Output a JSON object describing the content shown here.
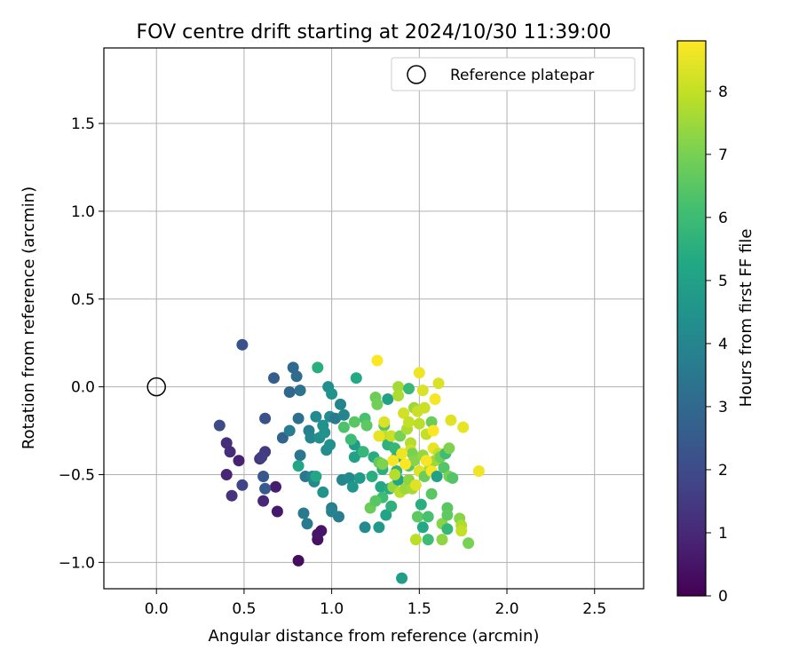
{
  "chart_data": {
    "type": "scatter",
    "title": "FOV centre drift starting at 2024/10/30 11:39:00",
    "xlabel": "Angular distance from reference (arcmin)",
    "ylabel": "Rotation from reference (arcmin)",
    "xlim": [
      -0.3,
      2.78
    ],
    "ylim": [
      -1.15,
      1.93
    ],
    "xticks": [
      0.0,
      0.5,
      1.0,
      1.5,
      2.0,
      2.5
    ],
    "xtick_labels": [
      "0.0",
      "0.5",
      "1.0",
      "1.5",
      "2.0",
      "2.5"
    ],
    "yticks": [
      -1.0,
      -0.5,
      0.0,
      0.5,
      1.0,
      1.5
    ],
    "ytick_labels": [
      "−1.0",
      "−0.5",
      "0.0",
      "0.5",
      "1.0",
      "1.5"
    ],
    "grid": true,
    "legend": {
      "placement": "top-right",
      "entries": [
        "Reference platepar"
      ]
    },
    "reference_point": {
      "x": 0.0,
      "y": 0.0,
      "marker": "open-circle"
    },
    "colorbar": {
      "label": "Hours from first FF file",
      "min": 0,
      "max": 8.8,
      "ticks": [
        0,
        1,
        2,
        3,
        4,
        5,
        6,
        7,
        8
      ],
      "colormap": "viridis"
    },
    "points": [
      {
        "x": 0.81,
        "y": -0.99,
        "h": 0.3
      },
      {
        "x": 0.92,
        "y": -0.87,
        "h": 0.4
      },
      {
        "x": 0.94,
        "y": -0.82,
        "h": 0.5
      },
      {
        "x": 0.92,
        "y": -0.84,
        "h": 0.5
      },
      {
        "x": 0.69,
        "y": -0.71,
        "h": 0.6
      },
      {
        "x": 0.68,
        "y": -0.57,
        "h": 0.7
      },
      {
        "x": 0.61,
        "y": -0.65,
        "h": 1.0
      },
      {
        "x": 0.47,
        "y": -0.42,
        "h": 0.8
      },
      {
        "x": 0.4,
        "y": -0.32,
        "h": 1.2
      },
      {
        "x": 0.42,
        "y": -0.37,
        "h": 1.1
      },
      {
        "x": 0.4,
        "y": -0.5,
        "h": 0.9
      },
      {
        "x": 0.43,
        "y": -0.62,
        "h": 1.3
      },
      {
        "x": 0.59,
        "y": -0.41,
        "h": 1.3
      },
      {
        "x": 0.62,
        "y": -0.37,
        "h": 1.5
      },
      {
        "x": 0.6,
        "y": -0.4,
        "h": 1.6
      },
      {
        "x": 0.49,
        "y": -0.56,
        "h": 1.8
      },
      {
        "x": 0.36,
        "y": -0.22,
        "h": 2.0
      },
      {
        "x": 0.49,
        "y": 0.24,
        "h": 2.2
      },
      {
        "x": 0.62,
        "y": -0.18,
        "h": 2.2
      },
      {
        "x": 0.61,
        "y": -0.51,
        "h": 2.4
      },
      {
        "x": 0.62,
        "y": -0.58,
        "h": 2.5
      },
      {
        "x": 0.67,
        "y": 0.05,
        "h": 2.6
      },
      {
        "x": 0.72,
        "y": -0.29,
        "h": 2.8
      },
      {
        "x": 0.76,
        "y": -0.03,
        "h": 2.9
      },
      {
        "x": 0.78,
        "y": 0.11,
        "h": 3.0
      },
      {
        "x": 0.8,
        "y": 0.06,
        "h": 3.1
      },
      {
        "x": 0.82,
        "y": -0.02,
        "h": 3.3
      },
      {
        "x": 0.81,
        "y": -0.18,
        "h": 3.2
      },
      {
        "x": 0.82,
        "y": -0.39,
        "h": 3.4
      },
      {
        "x": 0.85,
        "y": -0.51,
        "h": 3.5
      },
      {
        "x": 0.84,
        "y": -0.72,
        "h": 3.6
      },
      {
        "x": 0.86,
        "y": -0.78,
        "h": 3.6
      },
      {
        "x": 0.76,
        "y": -0.25,
        "h": 3.7
      },
      {
        "x": 0.87,
        "y": -0.25,
        "h": 3.8
      },
      {
        "x": 0.89,
        "y": -0.51,
        "h": 3.9
      },
      {
        "x": 0.88,
        "y": -0.29,
        "h": 4.0
      },
      {
        "x": 0.9,
        "y": -0.54,
        "h": 4.1
      },
      {
        "x": 0.91,
        "y": -0.17,
        "h": 4.2
      },
      {
        "x": 0.93,
        "y": -0.29,
        "h": 4.3
      },
      {
        "x": 0.95,
        "y": -0.22,
        "h": 4.4
      },
      {
        "x": 0.96,
        "y": -0.26,
        "h": 4.5
      },
      {
        "x": 0.97,
        "y": -0.36,
        "h": 4.3
      },
      {
        "x": 0.95,
        "y": -0.6,
        "h": 4.5
      },
      {
        "x": 0.99,
        "y": -0.17,
        "h": 4.2
      },
      {
        "x": 0.99,
        "y": -0.33,
        "h": 4.4
      },
      {
        "x": 1.0,
        "y": -0.69,
        "h": 3.8
      },
      {
        "x": 1.02,
        "y": -0.18,
        "h": 3.6
      },
      {
        "x": 1.05,
        "y": -0.1,
        "h": 4.0
      },
      {
        "x": 1.06,
        "y": -0.53,
        "h": 4.0
      },
      {
        "x": 1.04,
        "y": -0.74,
        "h": 3.7
      },
      {
        "x": 1.0,
        "y": -0.71,
        "h": 3.9
      },
      {
        "x": 1.07,
        "y": -0.16,
        "h": 4.0
      },
      {
        "x": 1.1,
        "y": -0.52,
        "h": 4.2
      },
      {
        "x": 1.12,
        "y": -0.57,
        "h": 4.6
      },
      {
        "x": 1.13,
        "y": -0.33,
        "h": 4.8
      },
      {
        "x": 1.13,
        "y": -0.4,
        "h": 5.0
      },
      {
        "x": 1.16,
        "y": -0.52,
        "h": 4.8
      },
      {
        "x": 1.17,
        "y": -0.37,
        "h": 4.9
      },
      {
        "x": 1.19,
        "y": -0.8,
        "h": 4.2
      },
      {
        "x": 1.27,
        "y": -0.8,
        "h": 4.7
      },
      {
        "x": 0.98,
        "y": 0.0,
        "h": 4.3
      },
      {
        "x": 1.0,
        "y": -0.04,
        "h": 4.5
      },
      {
        "x": 0.92,
        "y": 0.11,
        "h": 5.5
      },
      {
        "x": 0.81,
        "y": -0.45,
        "h": 5.2
      },
      {
        "x": 0.91,
        "y": -0.51,
        "h": 5.2
      },
      {
        "x": 1.14,
        "y": 0.05,
        "h": 5.3
      },
      {
        "x": 1.13,
        "y": -0.2,
        "h": 6.5
      },
      {
        "x": 1.07,
        "y": -0.23,
        "h": 6.3
      },
      {
        "x": 1.11,
        "y": -0.3,
        "h": 6.0
      },
      {
        "x": 1.18,
        "y": -0.37,
        "h": 5.8
      },
      {
        "x": 1.19,
        "y": -0.18,
        "h": 6.2
      },
      {
        "x": 1.2,
        "y": -0.22,
        "h": 6.6
      },
      {
        "x": 1.23,
        "y": -0.51,
        "h": 5.5
      },
      {
        "x": 1.24,
        "y": -0.4,
        "h": 5.4
      },
      {
        "x": 1.25,
        "y": -0.06,
        "h": 6.8
      },
      {
        "x": 1.26,
        "y": -0.1,
        "h": 6.9
      },
      {
        "x": 1.27,
        "y": -0.43,
        "h": 6.7
      },
      {
        "x": 1.28,
        "y": -0.57,
        "h": 5.2
      },
      {
        "x": 1.29,
        "y": -0.47,
        "h": 5.5
      },
      {
        "x": 1.29,
        "y": -0.63,
        "h": 6.0
      },
      {
        "x": 1.3,
        "y": -0.22,
        "h": 6.4
      },
      {
        "x": 1.3,
        "y": -0.28,
        "h": 7.9
      },
      {
        "x": 1.31,
        "y": -0.73,
        "h": 5.1
      },
      {
        "x": 1.32,
        "y": -0.07,
        "h": 5.0
      },
      {
        "x": 1.32,
        "y": -0.33,
        "h": 5.6
      },
      {
        "x": 1.33,
        "y": -0.58,
        "h": 5.4
      },
      {
        "x": 1.34,
        "y": -0.28,
        "h": 8.1
      },
      {
        "x": 1.34,
        "y": -0.68,
        "h": 5.6
      },
      {
        "x": 1.35,
        "y": -0.57,
        "h": 7.4
      },
      {
        "x": 1.36,
        "y": -0.35,
        "h": 5.8
      },
      {
        "x": 1.37,
        "y": -0.4,
        "h": 5.6
      },
      {
        "x": 1.37,
        "y": -0.48,
        "h": 5.7
      },
      {
        "x": 1.38,
        "y": -0.53,
        "h": 5.2
      },
      {
        "x": 1.38,
        "y": 0.0,
        "h": 7.6
      },
      {
        "x": 1.38,
        "y": -0.05,
        "h": 7.7
      },
      {
        "x": 1.39,
        "y": -0.28,
        "h": 7.0
      },
      {
        "x": 1.39,
        "y": -0.6,
        "h": 7.9
      },
      {
        "x": 1.4,
        "y": -1.09,
        "h": 4.9
      },
      {
        "x": 1.41,
        "y": -0.15,
        "h": 8.2
      },
      {
        "x": 1.42,
        "y": -0.58,
        "h": 7.5
      },
      {
        "x": 1.43,
        "y": -0.24,
        "h": 7.7
      },
      {
        "x": 1.44,
        "y": -0.01,
        "h": 5.9
      },
      {
        "x": 1.44,
        "y": -0.45,
        "h": 6.5
      },
      {
        "x": 1.44,
        "y": -0.53,
        "h": 7.3
      },
      {
        "x": 1.45,
        "y": -0.32,
        "h": 7.8
      },
      {
        "x": 1.45,
        "y": -0.36,
        "h": 8.2
      },
      {
        "x": 1.46,
        "y": -0.38,
        "h": 7.0
      },
      {
        "x": 1.46,
        "y": -0.58,
        "h": 7.6
      },
      {
        "x": 1.47,
        "y": -0.12,
        "h": 7.5
      },
      {
        "x": 1.47,
        "y": -0.42,
        "h": 7.2
      },
      {
        "x": 1.48,
        "y": -0.87,
        "h": 7.9
      },
      {
        "x": 1.49,
        "y": -0.74,
        "h": 6.6
      },
      {
        "x": 1.5,
        "y": 0.08,
        "h": 8.6
      },
      {
        "x": 1.5,
        "y": -0.21,
        "h": 7.9
      },
      {
        "x": 1.5,
        "y": -0.48,
        "h": 8.4
      },
      {
        "x": 1.51,
        "y": -0.67,
        "h": 5.5
      },
      {
        "x": 1.52,
        "y": -0.02,
        "h": 8.3
      },
      {
        "x": 1.52,
        "y": -0.39,
        "h": 7.4
      },
      {
        "x": 1.52,
        "y": -0.8,
        "h": 5.3
      },
      {
        "x": 1.53,
        "y": -0.12,
        "h": 8.1
      },
      {
        "x": 1.53,
        "y": -0.51,
        "h": 6.8
      },
      {
        "x": 1.54,
        "y": -0.27,
        "h": 8.0
      },
      {
        "x": 1.55,
        "y": -0.74,
        "h": 6.2
      },
      {
        "x": 1.55,
        "y": -0.87,
        "h": 6.0
      },
      {
        "x": 1.56,
        "y": -0.46,
        "h": 7.6
      },
      {
        "x": 1.57,
        "y": -0.2,
        "h": 6.8
      },
      {
        "x": 1.57,
        "y": -0.48,
        "h": 8.7
      },
      {
        "x": 1.57,
        "y": -0.61,
        "h": 6.5
      },
      {
        "x": 1.58,
        "y": -0.35,
        "h": 8.5
      },
      {
        "x": 1.58,
        "y": -0.25,
        "h": 8.9
      },
      {
        "x": 1.59,
        "y": -0.07,
        "h": 8.7
      },
      {
        "x": 1.59,
        "y": -0.42,
        "h": 7.5
      },
      {
        "x": 1.6,
        "y": -0.51,
        "h": 5.0
      },
      {
        "x": 1.61,
        "y": 0.02,
        "h": 8.3
      },
      {
        "x": 1.61,
        "y": -0.38,
        "h": 8.0
      },
      {
        "x": 1.62,
        "y": -0.4,
        "h": 6.9
      },
      {
        "x": 1.63,
        "y": -0.78,
        "h": 7.2
      },
      {
        "x": 1.63,
        "y": -0.87,
        "h": 7.3
      },
      {
        "x": 1.64,
        "y": -0.46,
        "h": 6.4
      },
      {
        "x": 1.65,
        "y": -0.38,
        "h": 6.0
      },
      {
        "x": 1.66,
        "y": -0.69,
        "h": 6.5
      },
      {
        "x": 1.66,
        "y": -0.73,
        "h": 6.6
      },
      {
        "x": 1.66,
        "y": -0.81,
        "h": 5.8
      },
      {
        "x": 1.67,
        "y": -0.35,
        "h": 7.1
      },
      {
        "x": 1.67,
        "y": -0.51,
        "h": 7.0
      },
      {
        "x": 1.68,
        "y": -0.19,
        "h": 8.4
      },
      {
        "x": 1.69,
        "y": -0.52,
        "h": 6.4
      },
      {
        "x": 1.73,
        "y": -0.75,
        "h": 7.2
      },
      {
        "x": 1.74,
        "y": -0.79,
        "h": 7.7
      },
      {
        "x": 1.74,
        "y": -0.82,
        "h": 8.0
      },
      {
        "x": 1.75,
        "y": -0.23,
        "h": 8.5
      },
      {
        "x": 1.78,
        "y": -0.89,
        "h": 7.0
      },
      {
        "x": 1.84,
        "y": -0.48,
        "h": 8.6
      },
      {
        "x": 1.26,
        "y": 0.15,
        "h": 8.8
      },
      {
        "x": 1.27,
        "y": -0.28,
        "h": 8.5
      },
      {
        "x": 1.3,
        "y": -0.2,
        "h": 8.3
      },
      {
        "x": 1.35,
        "y": -0.42,
        "h": 8.7
      },
      {
        "x": 1.4,
        "y": -0.38,
        "h": 8.6
      },
      {
        "x": 1.42,
        "y": -0.44,
        "h": 8.8
      },
      {
        "x": 1.48,
        "y": -0.56,
        "h": 8.4
      },
      {
        "x": 1.54,
        "y": -0.42,
        "h": 8.7
      },
      {
        "x": 1.44,
        "y": -0.2,
        "h": 8.0
      },
      {
        "x": 1.36,
        "y": -0.5,
        "h": 7.8
      },
      {
        "x": 1.22,
        "y": -0.69,
        "h": 6.8
      },
      {
        "x": 1.25,
        "y": -0.65,
        "h": 6.5
      },
      {
        "x": 1.29,
        "y": -0.44,
        "h": 7.1
      },
      {
        "x": 1.49,
        "y": -0.14,
        "h": 8.1
      }
    ]
  }
}
